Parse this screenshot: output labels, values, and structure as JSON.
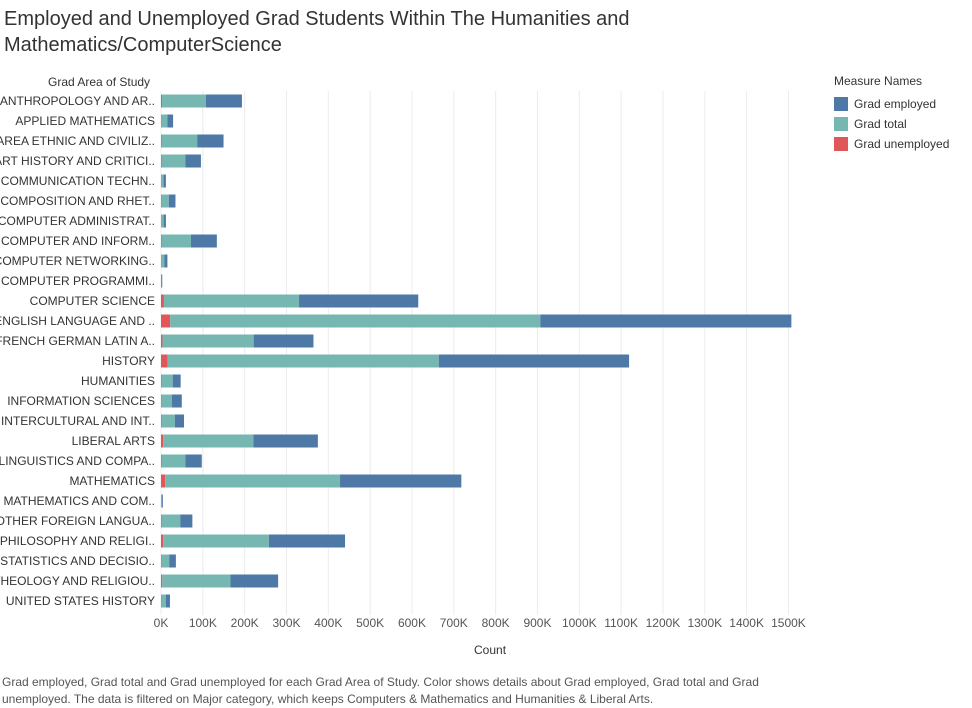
{
  "title": "Employed and Unemployed Grad Students Within The Humanities and Mathematics/ComputerScience",
  "caption": "Grad employed, Grad total and Grad unemployed for each Grad Area of Study.  Color shows details about Grad employed, Grad total and Grad unemployed. The data is filtered on Major category, which keeps Computers & Mathematics and Humanities & Liberal Arts.",
  "legend": {
    "title": "Measure Names",
    "placement": "top-right",
    "items": [
      {
        "label": "Grad employed",
        "color": "#4e79a7"
      },
      {
        "label": "Grad total",
        "color": "#76b7b2"
      },
      {
        "label": "Grad unemployed",
        "color": "#e15759"
      }
    ]
  },
  "chart_data": {
    "type": "bar",
    "orientation": "horizontal",
    "stacked": true,
    "title": "Employed and Unemployed Grad Students Within The Humanities and Mathematics/ComputerScience",
    "xlabel": "Count",
    "ylabel": "Grad Area of Study",
    "xlim": [
      0,
      1550000
    ],
    "xticks": [
      "0K",
      "100K",
      "200K",
      "300K",
      "400K",
      "500K",
      "600K",
      "700K",
      "800K",
      "900K",
      "1000K",
      "1100K",
      "1200K",
      "1300K",
      "1400K",
      "1500K"
    ],
    "grid": true,
    "categories": [
      "ANTHROPOLOGY AND AR..",
      "APPLIED MATHEMATICS",
      "AREA ETHNIC AND CIVILIZ..",
      "ART HISTORY AND CRITICI..",
      "COMMUNICATION TECHN..",
      "COMPOSITION AND RHET..",
      "COMPUTER ADMINISTRAT..",
      "COMPUTER AND INFORM..",
      "COMPUTER NETWORKING..",
      "COMPUTER PROGRAMMI..",
      "COMPUTER SCIENCE",
      "ENGLISH LANGUAGE AND ..",
      "FRENCH GERMAN LATIN A..",
      "HISTORY",
      "HUMANITIES",
      "INFORMATION SCIENCES",
      "INTERCULTURAL AND INT..",
      "LIBERAL ARTS",
      "LINGUISTICS AND COMPA..",
      "MATHEMATICS",
      "MATHEMATICS AND COM..",
      "OTHER FOREIGN LANGUA..",
      "PHILOSOPHY AND RELIGI..",
      "STATISTICS AND DECISIO..",
      "THEOLOGY AND RELIGIOU..",
      "UNITED STATES HISTORY"
    ],
    "series": [
      {
        "name": "Grad unemployed",
        "color": "#e15759",
        "values": [
          2500,
          400,
          1500,
          1500,
          200,
          600,
          300,
          1500,
          300,
          100,
          7000,
          22000,
          3500,
          16000,
          1000,
          700,
          1000,
          5000,
          1500,
          10000,
          100,
          1000,
          5000,
          600,
          3000,
          400
        ]
      },
      {
        "name": "Grad total",
        "color": "#76b7b2",
        "values": [
          105000,
          15000,
          85000,
          57000,
          6000,
          18000,
          6000,
          70000,
          8000,
          1000,
          323000,
          885000,
          218000,
          648000,
          27000,
          25000,
          32000,
          216000,
          57000,
          418000,
          2500,
          45000,
          253000,
          19000,
          163000,
          11000
        ]
      },
      {
        "name": "Grad employed",
        "color": "#4e79a7",
        "values": [
          86000,
          13500,
          63000,
          37000,
          5500,
          16000,
          5500,
          62000,
          7000,
          900,
          285000,
          600000,
          143000,
          455000,
          19000,
          24000,
          22000,
          154000,
          39000,
          290000,
          2000,
          29000,
          182000,
          16000,
          114000,
          10000
        ]
      }
    ]
  }
}
